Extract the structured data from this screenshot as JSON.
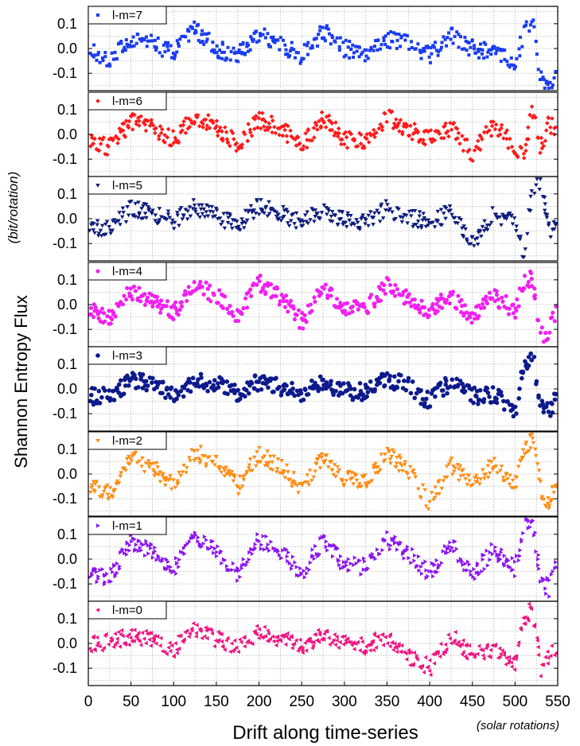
{
  "chart_data": {
    "type": "scatter",
    "ylabel": "Shannon Entropy Flux",
    "ylabel_unit": "(bit/rotation)",
    "xlabel": "Drift along time-series",
    "xlabel_unit": "(solar rotations)",
    "xlim": [
      0,
      550
    ],
    "ylim": [
      -0.17,
      0.17
    ],
    "x_ticks": [
      "0",
      "50",
      "100",
      "150",
      "200",
      "250",
      "300",
      "350",
      "400",
      "450",
      "500",
      "550"
    ],
    "y_ticks": [
      "0.1",
      "0.0",
      "-0.1"
    ],
    "grid": true,
    "legend_position": "top-left of each panel",
    "panels": [
      {
        "name": "l-m=7",
        "color": "#1a3cf0",
        "marker": "square",
        "x": [
          0,
          25,
          50,
          75,
          100,
          125,
          150,
          175,
          200,
          225,
          250,
          275,
          300,
          325,
          350,
          375,
          400,
          425,
          450,
          475,
          500,
          510,
          520,
          530,
          540,
          550
        ],
        "y": [
          0.0,
          -0.05,
          0.04,
          0.02,
          -0.02,
          0.08,
          0.0,
          -0.03,
          0.06,
          0.02,
          -0.03,
          0.07,
          0.0,
          -0.02,
          0.04,
          0.02,
          -0.03,
          0.05,
          0.0,
          -0.02,
          -0.05,
          0.05,
          0.13,
          -0.12,
          -0.15,
          -0.12
        ]
      },
      {
        "name": "l-m=6",
        "color": "#ff1a1a",
        "marker": "diamond",
        "x": [
          0,
          25,
          50,
          75,
          100,
          125,
          150,
          175,
          200,
          225,
          250,
          275,
          300,
          325,
          350,
          375,
          400,
          425,
          450,
          475,
          500,
          510,
          520,
          530,
          540,
          550
        ],
        "y": [
          -0.03,
          -0.05,
          0.05,
          0.03,
          -0.02,
          0.07,
          0.03,
          -0.04,
          0.06,
          0.03,
          -0.05,
          0.07,
          -0.02,
          -0.02,
          0.07,
          0.02,
          -0.02,
          0.03,
          -0.08,
          0.04,
          -0.05,
          -0.1,
          0.1,
          -0.05,
          0.05,
          0.0
        ]
      },
      {
        "name": "l-m=5",
        "color": "#0d1a7a",
        "marker": "triangle-down",
        "x": [
          0,
          25,
          50,
          75,
          100,
          125,
          150,
          175,
          200,
          225,
          250,
          275,
          300,
          325,
          350,
          375,
          400,
          425,
          450,
          475,
          500,
          510,
          520,
          530,
          540,
          550
        ],
        "y": [
          -0.03,
          -0.04,
          0.04,
          0.02,
          -0.01,
          0.05,
          0.01,
          -0.03,
          0.05,
          0.02,
          -0.02,
          0.04,
          -0.01,
          -0.01,
          0.04,
          0.01,
          -0.02,
          0.03,
          -0.1,
          0.02,
          -0.02,
          -0.15,
          0.12,
          0.15,
          -0.05,
          0.0
        ]
      },
      {
        "name": "l-m=4",
        "color": "#f020f0",
        "marker": "hexagon",
        "x": [
          0,
          25,
          50,
          75,
          100,
          125,
          150,
          175,
          200,
          225,
          250,
          275,
          300,
          325,
          350,
          375,
          400,
          425,
          450,
          475,
          500,
          510,
          520,
          530,
          540,
          550
        ],
        "y": [
          -0.02,
          -0.05,
          0.05,
          0.02,
          -0.03,
          0.07,
          0.04,
          -0.04,
          0.09,
          0.03,
          -0.07,
          0.06,
          -0.02,
          -0.02,
          0.08,
          0.02,
          -0.02,
          0.04,
          -0.05,
          0.04,
          -0.03,
          0.1,
          0.1,
          -0.13,
          -0.1,
          0.0
        ]
      },
      {
        "name": "l-m=3",
        "color": "#0d1a8c",
        "marker": "circle",
        "x": [
          0,
          25,
          50,
          75,
          100,
          125,
          150,
          175,
          200,
          225,
          250,
          275,
          300,
          325,
          350,
          375,
          400,
          425,
          450,
          475,
          500,
          510,
          520,
          530,
          540,
          550
        ],
        "y": [
          -0.03,
          -0.03,
          0.03,
          0.02,
          -0.02,
          0.03,
          0.02,
          -0.02,
          0.03,
          0.01,
          -0.02,
          0.03,
          -0.01,
          -0.01,
          0.04,
          0.01,
          -0.05,
          0.03,
          -0.03,
          -0.02,
          -0.1,
          0.1,
          0.14,
          -0.05,
          -0.1,
          0.0
        ]
      },
      {
        "name": "l-m=2",
        "color": "#ff8c14",
        "marker": "triangle-down",
        "x": [
          0,
          25,
          50,
          75,
          100,
          125,
          150,
          175,
          200,
          225,
          250,
          275,
          300,
          325,
          350,
          375,
          400,
          425,
          450,
          475,
          500,
          510,
          520,
          530,
          540,
          550
        ],
        "y": [
          -0.05,
          -0.08,
          0.06,
          0.03,
          -0.04,
          0.09,
          0.04,
          -0.05,
          0.08,
          0.03,
          -0.06,
          0.07,
          -0.02,
          -0.03,
          0.08,
          0.02,
          -0.12,
          0.04,
          -0.05,
          0.04,
          -0.05,
          0.08,
          0.15,
          -0.06,
          -0.12,
          0.0
        ]
      },
      {
        "name": "l-m=1",
        "color": "#8c14f0",
        "marker": "triangle-right",
        "x": [
          0,
          25,
          50,
          75,
          100,
          125,
          150,
          175,
          200,
          225,
          250,
          275,
          300,
          325,
          350,
          375,
          400,
          425,
          450,
          475,
          500,
          510,
          520,
          530,
          540,
          550
        ],
        "y": [
          -0.05,
          -0.08,
          0.07,
          0.03,
          -0.04,
          0.09,
          0.04,
          -0.06,
          0.08,
          0.03,
          -0.06,
          0.07,
          -0.02,
          -0.03,
          0.08,
          0.02,
          -0.06,
          0.06,
          -0.07,
          0.04,
          -0.04,
          0.12,
          0.16,
          -0.08,
          -0.12,
          0.0
        ]
      },
      {
        "name": "l-m=0",
        "color": "#f01480",
        "marker": "triangle-left",
        "x": [
          0,
          25,
          50,
          75,
          100,
          125,
          150,
          175,
          200,
          225,
          250,
          275,
          300,
          325,
          350,
          375,
          400,
          425,
          450,
          475,
          500,
          510,
          520,
          530,
          540,
          550
        ],
        "y": [
          0.0,
          0.01,
          0.03,
          0.02,
          -0.02,
          0.06,
          0.02,
          -0.02,
          0.04,
          0.02,
          -0.02,
          0.03,
          0.0,
          -0.01,
          0.03,
          -0.05,
          -0.1,
          0.03,
          -0.05,
          -0.02,
          -0.08,
          0.1,
          0.14,
          -0.1,
          -0.05,
          0.0
        ]
      }
    ]
  }
}
